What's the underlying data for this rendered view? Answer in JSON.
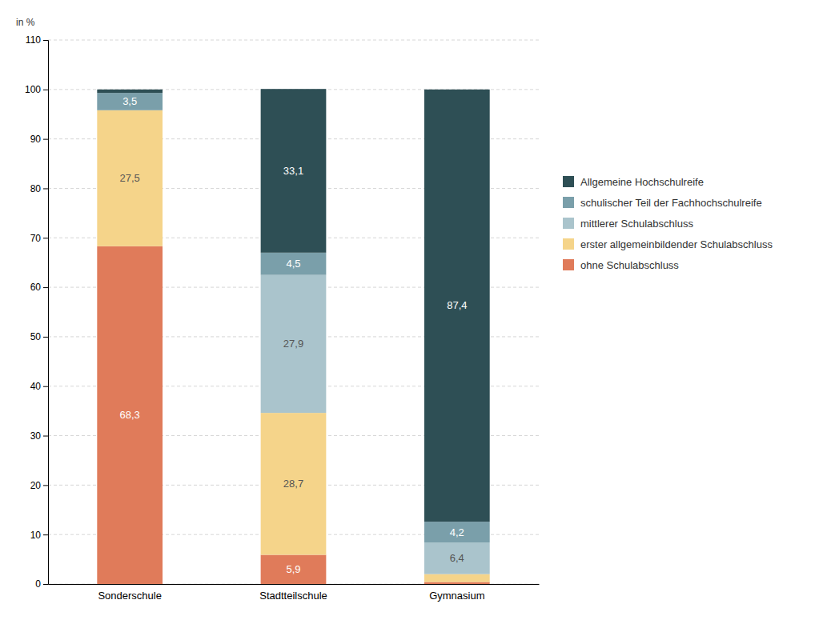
{
  "chart_data": {
    "type": "bar",
    "stacked": true,
    "data_labels": true,
    "y_label": "in %",
    "categories": [
      "Sonderschule",
      "Stadtteilschule",
      "Gymnasium"
    ],
    "series": [
      {
        "name": "ohne Schulabschluss",
        "color": "#e07b5a",
        "values": [
          68.3,
          5.9,
          0.4
        ],
        "value_labels": [
          "68,3",
          "5,9",
          null
        ]
      },
      {
        "name": "erster allgemeinbildender Schulabschluss",
        "color": "#f5d48a",
        "values": [
          27.5,
          28.7,
          1.6
        ],
        "value_labels": [
          "27,5",
          "28,7",
          null
        ]
      },
      {
        "name": "mittlerer Schulabschluss",
        "color": "#aac4cc",
        "values": [
          0.0,
          27.9,
          6.4
        ],
        "value_labels": [
          null,
          "27,9",
          "6,4"
        ]
      },
      {
        "name": "schulischer Teil der Fachhochschulreife",
        "color": "#7a9faa",
        "values": [
          3.5,
          4.5,
          4.2
        ],
        "value_labels": [
          "3,5",
          "4,5",
          "4,2"
        ]
      },
      {
        "name": "Allgemeine Hochschulreife",
        "color": "#2e4f55",
        "values": [
          0.7,
          33.1,
          87.4
        ],
        "value_labels": [
          null,
          "33,1",
          "87,4"
        ]
      }
    ],
    "ylim": [
      0,
      110
    ],
    "yticks": [
      0,
      10,
      20,
      30,
      40,
      50,
      60,
      70,
      80,
      90,
      100,
      110
    ],
    "grid": true,
    "legend": "right"
  }
}
